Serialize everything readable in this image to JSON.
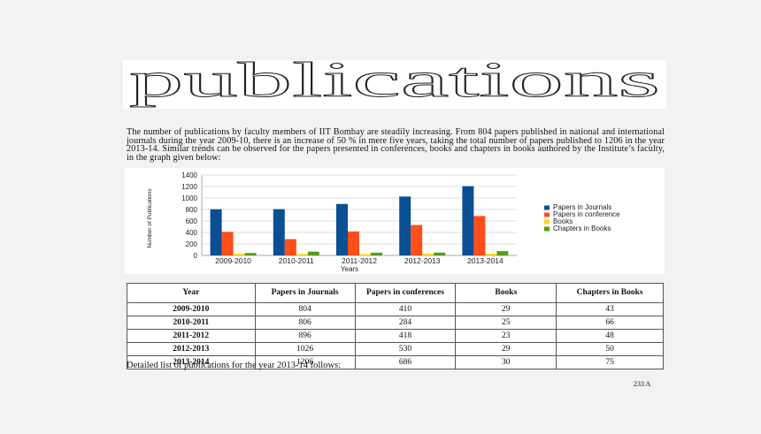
{
  "banner": {
    "title": "publications"
  },
  "intro": {
    "text": "The number of publications by faculty members of IIT Bombay are steadily increasing. From 804 papers published in national and international journals during the year 2009-10, there is an increase of 50 % in mere five years, taking the total number of papers published to 1206 in the year 2013-14. Similar trends can be observed for the papers presented in conferences, books and chapters in books authored by the Institute’s faculty, in the graph given below:"
  },
  "chart_data": {
    "type": "bar",
    "categories": [
      "2009-2010",
      "2010-2011",
      "2011-2012",
      "2012-2013",
      "2013-2014"
    ],
    "series": [
      {
        "name": "Papers in Journals",
        "values": [
          804,
          806,
          896,
          1026,
          1206
        ],
        "color": "#0b4f93"
      },
      {
        "name": "Papers in conference",
        "values": [
          410,
          284,
          418,
          530,
          686
        ],
        "color": "#ff4e1a"
      },
      {
        "name": "Books",
        "values": [
          29,
          25,
          23,
          29,
          30
        ],
        "color": "#ffd320"
      },
      {
        "name": "Chapters in Books",
        "values": [
          43,
          66,
          48,
          50,
          75
        ],
        "color": "#579d1c"
      }
    ],
    "title": "",
    "xlabel": "Years",
    "ylabel": "Number of Publications",
    "ylim": [
      0,
      1400
    ],
    "yticks": [
      0,
      200,
      400,
      600,
      800,
      1000,
      1200,
      1400
    ],
    "grid": true,
    "legend": "right"
  },
  "table": {
    "headers": [
      "Year",
      "Papers in Journals",
      "Papers in conferences",
      "Books",
      "Chapters in Books"
    ],
    "rows": [
      [
        "2009-2010",
        "804",
        "410",
        "29",
        "43"
      ],
      [
        "2010-2011",
        "806",
        "284",
        "25",
        "66"
      ],
      [
        "2011-2012",
        "896",
        "418",
        "23",
        "48"
      ],
      [
        "2012-2013",
        "1026",
        "530",
        "29",
        "50"
      ],
      [
        "2013-2014",
        "1206",
        "686",
        "30",
        "75"
      ]
    ]
  },
  "footer": {
    "detail_text": "Detailed list of publications for the year 2013-14 follows:",
    "page_number": "233 A"
  }
}
